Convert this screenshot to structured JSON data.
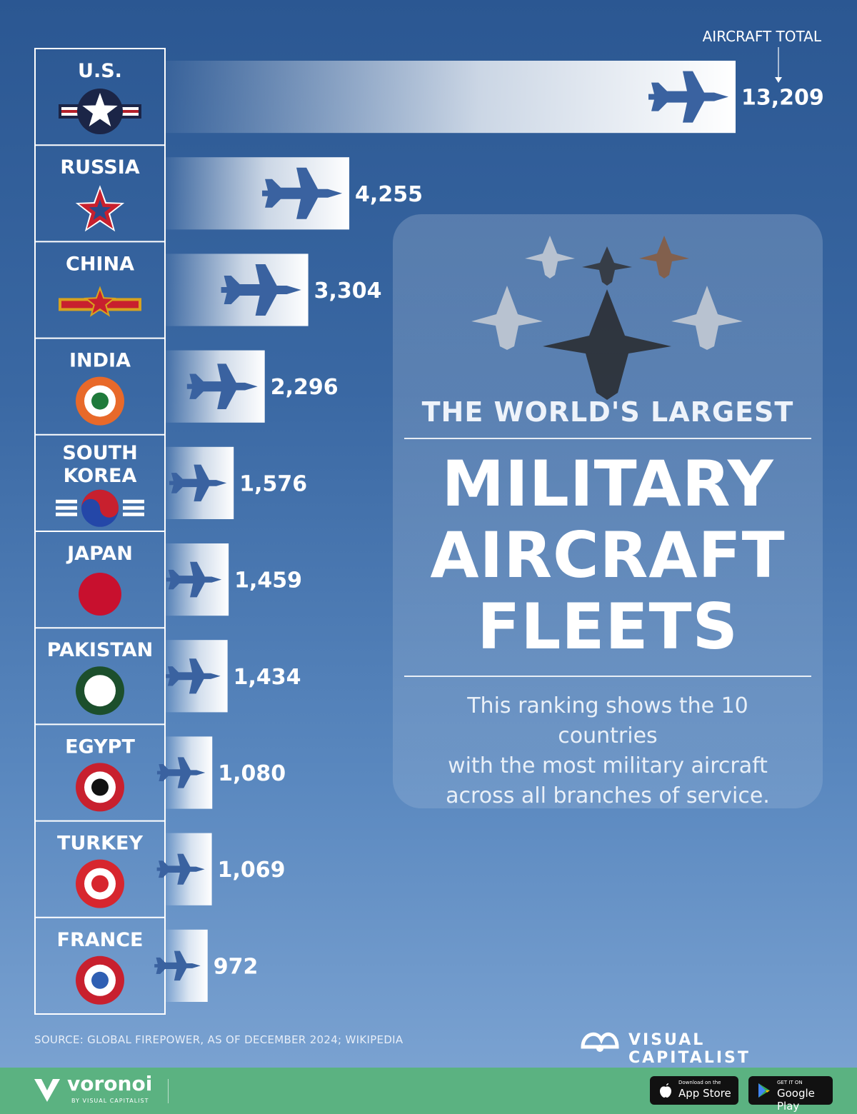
{
  "chart_data": {
    "type": "bar",
    "orientation": "horizontal",
    "title": "THE WORLD'S LARGEST MILITARY AIRCRAFT FLEETS",
    "value_label": "AIRCRAFT TOTAL",
    "categories": [
      "U.S.",
      "RUSSIA",
      "CHINA",
      "INDIA",
      "SOUTH KOREA",
      "JAPAN",
      "PAKISTAN",
      "EGYPT",
      "TURKEY",
      "FRANCE"
    ],
    "values": [
      13209,
      4255,
      3304,
      2296,
      1576,
      1459,
      1434,
      1080,
      1069,
      972
    ],
    "value_labels": [
      "13,209",
      "4,255",
      "3,304",
      "2,296",
      "1,576",
      "1,459",
      "1,434",
      "1,080",
      "1,069",
      "972"
    ],
    "xlim": [
      0,
      13209
    ],
    "grid": false,
    "legend": "none"
  },
  "card": {
    "pre_title": "THE WORLD'S LARGEST",
    "title_lines": [
      "MILITARY",
      "AIRCRAFT",
      "FLEETS"
    ],
    "description_lines": [
      "This ranking shows the 10 countries",
      "with the most military aircraft",
      "across all branches of service."
    ]
  },
  "source": "SOURCE: GLOBAL FIREPOWER, AS OF DECEMBER 2024; WIKIPEDIA",
  "brand": "VISUAL CAPITALIST",
  "footer": {
    "brand": "voronoi",
    "brand_sub": "BY VISUAL CAPITALIST",
    "app_store_small": "Download on the",
    "app_store": "App Store",
    "google_play_small": "GET IT ON",
    "google_play": "Google Play"
  },
  "insignia": [
    {
      "type": "us-star",
      "name": "us-roundel-icon"
    },
    {
      "type": "red-star",
      "name": "russia-star-icon"
    },
    {
      "type": "china-star",
      "name": "china-roundel-icon"
    },
    {
      "type": "roundel",
      "name": "india-roundel-icon",
      "colors": [
        "#e8692a",
        "#ffffff",
        "#1f7a3b"
      ]
    },
    {
      "type": "taeguk",
      "name": "south-korea-roundel-icon"
    },
    {
      "type": "disc",
      "name": "japan-roundel-icon",
      "colors": [
        "#c8102e"
      ]
    },
    {
      "type": "roundel",
      "name": "pakistan-roundel-icon",
      "colors": [
        "#1c4f2c",
        "#ffffff"
      ]
    },
    {
      "type": "roundel",
      "name": "egypt-roundel-icon",
      "colors": [
        "#c8202e",
        "#ffffff",
        "#111111"
      ]
    },
    {
      "type": "roundel",
      "name": "turkey-roundel-icon",
      "colors": [
        "#d7262e",
        "#ffffff",
        "#d7262e"
      ]
    },
    {
      "type": "roundel",
      "name": "france-roundel-icon",
      "colors": [
        "#c8202e",
        "#ffffff",
        "#2f5fb3"
      ]
    }
  ],
  "colors": {
    "jet": "#3a62a0",
    "bar": "#ffffff"
  }
}
